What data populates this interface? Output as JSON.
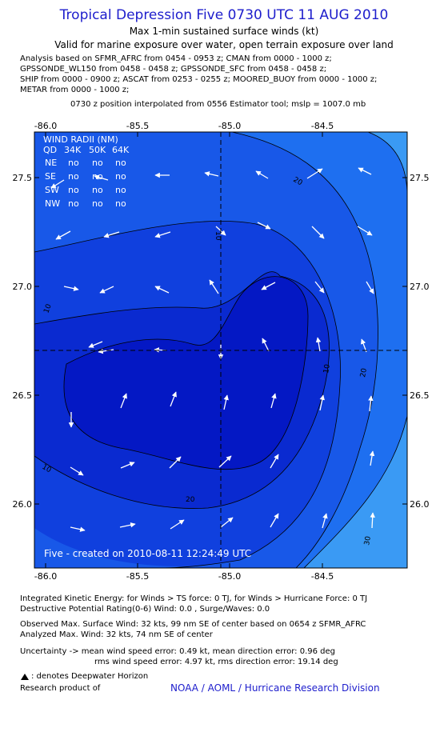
{
  "title": "Tropical Depression Five 0730 UTC 11 AUG 2010",
  "subtitle1": "Max 1-min sustained surface winds (kt)",
  "subtitle2": "Valid for marine exposure over water, open terrain exposure over land",
  "analysis_lines": [
    "Analysis based on SFMR_AFRC from 0454 - 0953 z; CMAN from 0000 - 1000 z;",
    "GPSSONDE_WL150 from 0458 - 0458 z; GPSSONDE_SFC from 0458 - 0458 z;",
    "SHIP from 0000 - 0900 z; ASCAT from 0253 - 0255 z; MOORED_BUOY from 0000 - 1000 z;",
    "METAR from 0000 - 1000 z;"
  ],
  "position_note": "0730 z position interpolated from 0556 Estimator tool; mslp = 1007.0 mb",
  "map": {
    "lon_ticks": [
      "-86.0",
      "-85.5",
      "-85.0",
      "-84.5"
    ],
    "lat_ticks": [
      "27.5",
      "27.0",
      "26.5",
      "26.0"
    ],
    "contour_labels": [
      "10",
      "10",
      "10",
      "10",
      "20",
      "20",
      "20",
      "30"
    ],
    "wind_radii": {
      "header": "WIND RADII (NM)",
      "columns": [
        "QD",
        "34K",
        "50K",
        "64K"
      ],
      "rows": [
        [
          "NE",
          "no",
          "no",
          "no"
        ],
        [
          "SE",
          "no",
          "no",
          "no"
        ],
        [
          "SW",
          "no",
          "no",
          "no"
        ],
        [
          "NW",
          "no",
          "no",
          "no"
        ]
      ]
    },
    "credit": "Five - created on 2010-08-11 12:24:49 UTC"
  },
  "stats_lines": [
    "Integrated Kinetic Energy:  for Winds > TS force: 0 TJ,  for Winds > Hurricane Force: 0 TJ",
    "Destructive Potential Rating(0-6)   Wind: 0.0 , Surge/Waves: 0.0"
  ],
  "obs_lines": [
    "Observed Max. Surface Wind: 32 kts, 99 nm SE of center based on 0654 z SFMR_AFRC",
    "Analyzed Max. Wind: 32 kts, 74 nm SE of center"
  ],
  "uncert_lines": [
    "Uncertainty -> mean wind speed error: 0.49 kt,    mean direction error: 0.96 deg",
    "rms wind speed error: 4.97 kt,    rms direction error: 19.14 deg"
  ],
  "deepwater_note": ": denotes Deepwater Horizon",
  "research_label": "Research product of",
  "org": "NOAA / AOML / Hurricane Research Division"
}
